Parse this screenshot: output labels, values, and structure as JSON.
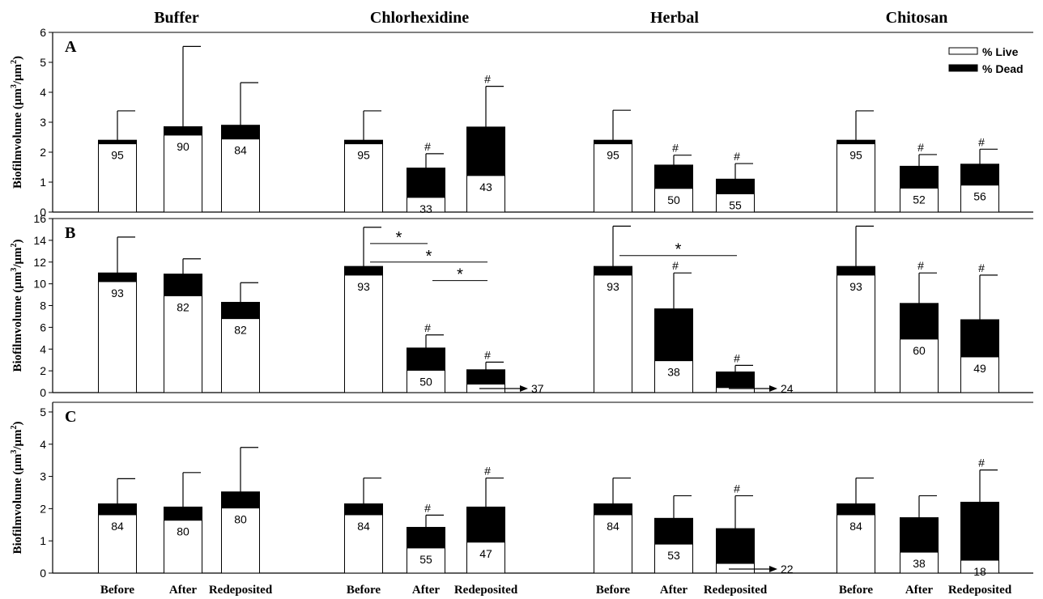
{
  "treatments": [
    "Buffer",
    "Chlorhexidine",
    "Herbal",
    "Chitosan"
  ],
  "times": [
    "Before",
    "After",
    "Redeposited"
  ],
  "ylabel_parts": {
    "pre": "Biofilmvolume (μm",
    "exp1": "3",
    "mid": "/μm",
    "exp2": "2",
    "post": ")"
  },
  "legend": {
    "live": "% Live",
    "dead": "% Dead"
  },
  "markers": {
    "sig_between": "*",
    "sig_vs_before": "#"
  },
  "chart_data": {
    "type": "bar",
    "stacked": true,
    "grid": false,
    "legend_position": "top-right",
    "panels": [
      {
        "label": "A",
        "ylim": [
          0,
          6
        ],
        "yticks": [
          0,
          1,
          2,
          3,
          4,
          5,
          6
        ],
        "groups": [
          {
            "treatment": "Buffer",
            "bars": [
              {
                "time": "Before",
                "total": 2.4,
                "live": 2.28,
                "live_pct": "95",
                "err_top": 3.38
              },
              {
                "time": "After",
                "total": 2.85,
                "live": 2.57,
                "live_pct": "90",
                "err_top": 5.53
              },
              {
                "time": "Redeposited",
                "total": 2.9,
                "live": 2.44,
                "live_pct": "84",
                "err_top": 4.32
              }
            ]
          },
          {
            "treatment": "Chlorhexidine",
            "bars": [
              {
                "time": "Before",
                "total": 2.4,
                "live": 2.28,
                "live_pct": "95",
                "err_top": 3.38
              },
              {
                "time": "After",
                "total": 1.47,
                "live": 0.49,
                "live_pct": "33",
                "err_top": 1.95,
                "sig": "#"
              },
              {
                "time": "Redeposited",
                "total": 2.84,
                "live": 1.22,
                "live_pct": "43",
                "err_top": 4.2,
                "sig": "#"
              }
            ]
          },
          {
            "treatment": "Herbal",
            "bars": [
              {
                "time": "Before",
                "total": 2.4,
                "live": 2.28,
                "live_pct": "95",
                "err_top": 3.4
              },
              {
                "time": "After",
                "total": 1.57,
                "live": 0.79,
                "live_pct": "50",
                "err_top": 1.9,
                "sig": "#"
              },
              {
                "time": "Redeposited",
                "total": 1.1,
                "live": 0.61,
                "live_pct": "55",
                "err_top": 1.62,
                "sig": "#"
              }
            ]
          },
          {
            "treatment": "Chitosan",
            "bars": [
              {
                "time": "Before",
                "total": 2.4,
                "live": 2.28,
                "live_pct": "95",
                "err_top": 3.38
              },
              {
                "time": "After",
                "total": 1.53,
                "live": 0.8,
                "live_pct": "52",
                "err_top": 1.92,
                "sig": "#"
              },
              {
                "time": "Redeposited",
                "total": 1.6,
                "live": 0.9,
                "live_pct": "56",
                "err_top": 2.1,
                "sig": "#"
              }
            ]
          }
        ]
      },
      {
        "label": "B",
        "ylim": [
          0,
          16
        ],
        "yticks": [
          0,
          2,
          4,
          6,
          8,
          10,
          12,
          14,
          16
        ],
        "groups": [
          {
            "treatment": "Buffer",
            "bars": [
              {
                "time": "Before",
                "total": 11.0,
                "live": 10.2,
                "live_pct": "93",
                "err_top": 14.3
              },
              {
                "time": "After",
                "total": 10.9,
                "live": 8.9,
                "live_pct": "82",
                "err_top": 12.3
              },
              {
                "time": "Redeposited",
                "total": 8.3,
                "live": 6.8,
                "live_pct": "82",
                "err_top": 10.1
              }
            ]
          },
          {
            "treatment": "Chlorhexidine",
            "bars": [
              {
                "time": "Before",
                "total": 11.6,
                "live": 10.8,
                "live_pct": "93",
                "err_top": 15.2
              },
              {
                "time": "After",
                "total": 4.1,
                "live": 2.05,
                "live_pct": "50",
                "err_top": 5.3,
                "sig": "#"
              },
              {
                "time": "Redeposited",
                "total": 2.1,
                "live": 0.78,
                "live_pct": "37",
                "err_top": 2.8,
                "sig": "#",
                "pct_outside": true
              }
            ]
          },
          {
            "treatment": "Herbal",
            "bars": [
              {
                "time": "Before",
                "total": 11.6,
                "live": 10.8,
                "live_pct": "93",
                "err_top": 15.3
              },
              {
                "time": "After",
                "total": 7.7,
                "live": 2.93,
                "live_pct": "38",
                "err_top": 11.0,
                "sig": "#"
              },
              {
                "time": "Redeposited",
                "total": 1.9,
                "live": 0.46,
                "live_pct": "24",
                "err_top": 2.5,
                "sig": "#",
                "pct_outside": true
              }
            ]
          },
          {
            "treatment": "Chitosan",
            "bars": [
              {
                "time": "Before",
                "total": 11.6,
                "live": 10.8,
                "live_pct": "93",
                "err_top": 15.3
              },
              {
                "time": "After",
                "total": 8.2,
                "live": 4.92,
                "live_pct": "60",
                "err_top": 11.0,
                "sig": "#"
              },
              {
                "time": "Redeposited",
                "total": 6.7,
                "live": 3.28,
                "live_pct": "49",
                "err_top": 10.8,
                "sig": "#"
              }
            ]
          }
        ],
        "brackets": [
          {
            "group": 1,
            "from": 0,
            "to": 1,
            "level": 13.7
          },
          {
            "group": 1,
            "from": 0,
            "to": 2,
            "level": 12.0
          },
          {
            "group": 1,
            "from": 1,
            "to": 2,
            "level": 10.3
          },
          {
            "group": 2,
            "from": 0,
            "to": 2,
            "level": 12.6
          }
        ]
      },
      {
        "label": "C",
        "ylim": [
          0,
          5.3
        ],
        "yticks": [
          0,
          1,
          2,
          3,
          4,
          5
        ],
        "groups": [
          {
            "treatment": "Buffer",
            "bars": [
              {
                "time": "Before",
                "total": 2.15,
                "live": 1.81,
                "live_pct": "84",
                "err_top": 2.93
              },
              {
                "time": "After",
                "total": 2.05,
                "live": 1.64,
                "live_pct": "80",
                "err_top": 3.12
              },
              {
                "time": "Redeposited",
                "total": 2.52,
                "live": 2.02,
                "live_pct": "80",
                "err_top": 3.9
              }
            ]
          },
          {
            "treatment": "Chlorhexidine",
            "bars": [
              {
                "time": "Before",
                "total": 2.15,
                "live": 1.81,
                "live_pct": "84",
                "err_top": 2.95
              },
              {
                "time": "After",
                "total": 1.42,
                "live": 0.78,
                "live_pct": "55",
                "err_top": 1.8,
                "sig": "#"
              },
              {
                "time": "Redeposited",
                "total": 2.05,
                "live": 0.96,
                "live_pct": "47",
                "err_top": 2.95,
                "sig": "#"
              }
            ]
          },
          {
            "treatment": "Herbal",
            "bars": [
              {
                "time": "Before",
                "total": 2.15,
                "live": 1.81,
                "live_pct": "84",
                "err_top": 2.95
              },
              {
                "time": "After",
                "total": 1.7,
                "live": 0.9,
                "live_pct": "53",
                "err_top": 2.4
              },
              {
                "time": "Redeposited",
                "total": 1.38,
                "live": 0.3,
                "live_pct": "22",
                "err_top": 2.4,
                "sig": "#",
                "pct_outside": true
              }
            ]
          },
          {
            "treatment": "Chitosan",
            "bars": [
              {
                "time": "Before",
                "total": 2.15,
                "live": 1.81,
                "live_pct": "84",
                "err_top": 2.95
              },
              {
                "time": "After",
                "total": 1.72,
                "live": 0.65,
                "live_pct": "38",
                "err_top": 2.4
              },
              {
                "time": "Redeposited",
                "total": 2.2,
                "live": 0.4,
                "live_pct": "18",
                "err_top": 3.2,
                "sig": "#"
              }
            ]
          }
        ]
      }
    ]
  }
}
